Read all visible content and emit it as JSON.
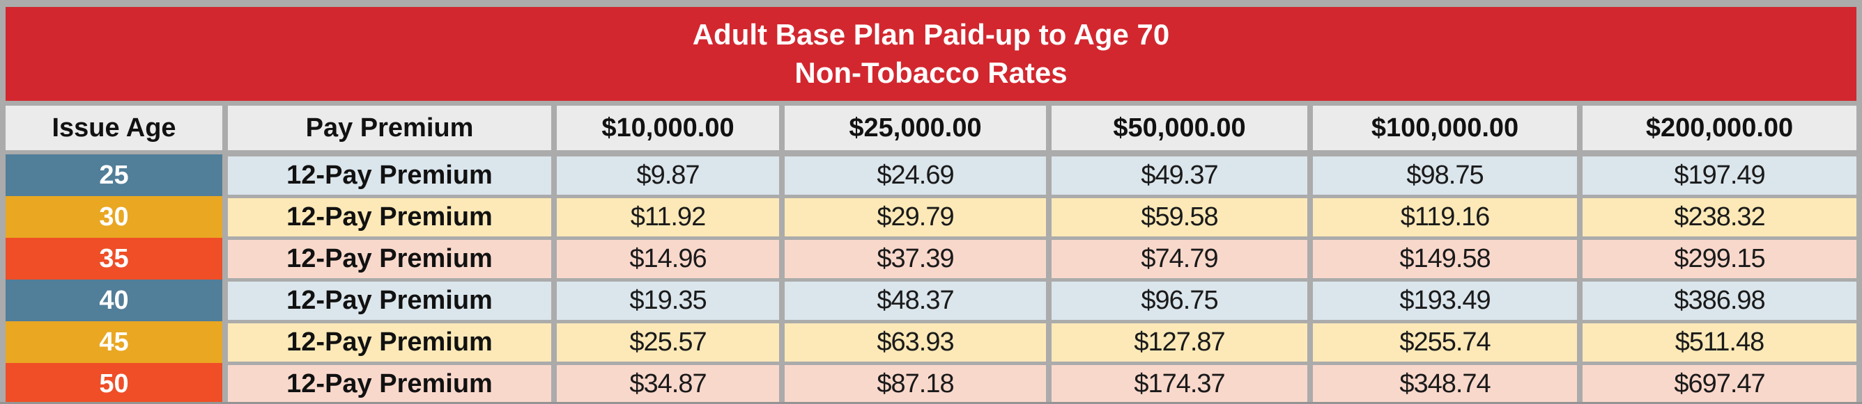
{
  "colors": {
    "banner_red": "#D2272F",
    "border_gray": "#ABABAB",
    "header_cell_bg": "#EBEBEB",
    "age_cell_blue": "#517E99",
    "age_cell_gold": "#E9A722",
    "age_cell_red": "#EF4E27",
    "row_tint_blue": "#DBE5EC",
    "row_tint_yellow": "#FCE9B7",
    "row_tint_pink": "#F9D8CC",
    "title_text": "#FFFFFF",
    "body_text": "#111111"
  },
  "table": {
    "title_line1": "Adult Base Plan Paid-up to Age 70",
    "title_line2": "Non-Tobacco Rates",
    "columns": {
      "issue_age": "Issue Age",
      "pay_premium": "Pay Premium",
      "face_10k": "$10,000.00",
      "face_25k": "$25,000.00",
      "face_50k": "$50,000.00",
      "face_100k": "$100,000.00",
      "face_200k": "$200,000.00"
    },
    "rows": [
      {
        "age": "25",
        "premium_type": "12-Pay Premium",
        "theme": "blue",
        "values": [
          "$9.87",
          "$24.69",
          "$49.37",
          "$98.75",
          "$197.49"
        ]
      },
      {
        "age": "30",
        "premium_type": "12-Pay Premium",
        "theme": "gold",
        "values": [
          "$11.92",
          "$29.79",
          "$59.58",
          "$119.16",
          "$238.32"
        ]
      },
      {
        "age": "35",
        "premium_type": "12-Pay Premium",
        "theme": "red",
        "values": [
          "$14.96",
          "$37.39",
          "$74.79",
          "$149.58",
          "$299.15"
        ]
      },
      {
        "age": "40",
        "premium_type": "12-Pay Premium",
        "theme": "blue",
        "values": [
          "$19.35",
          "$48.37",
          "$96.75",
          "$193.49",
          "$386.98"
        ]
      },
      {
        "age": "45",
        "premium_type": "12-Pay Premium",
        "theme": "gold",
        "values": [
          "$25.57",
          "$63.93",
          "$127.87",
          "$255.74",
          "$511.48"
        ]
      },
      {
        "age": "50",
        "premium_type": "12-Pay Premium",
        "theme": "red",
        "values": [
          "$34.87",
          "$87.18",
          "$174.37",
          "$348.74",
          "$697.47"
        ]
      }
    ]
  }
}
